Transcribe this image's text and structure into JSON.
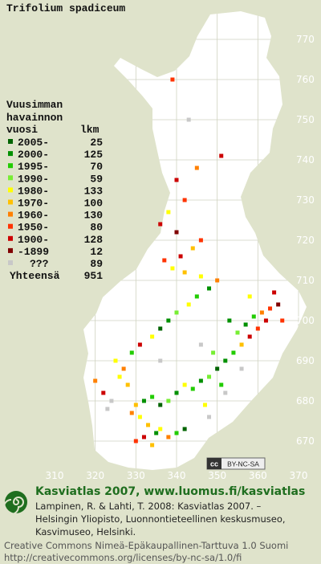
{
  "title": "Trifolium spadiceum",
  "legend": {
    "heading": [
      "Vuusimman",
      "havainnon",
      "vuosi"
    ],
    "count_heading": "lkm",
    "items": [
      {
        "label": "2005-",
        "count": 25,
        "color": "#006400"
      },
      {
        "label": "2000-",
        "count": 125,
        "color": "#009000"
      },
      {
        "label": "1995-",
        "count": 70,
        "color": "#22cc00"
      },
      {
        "label": "1990-",
        "count": 59,
        "color": "#77ee33"
      },
      {
        "label": "1980-",
        "count": 133,
        "color": "#ffff00"
      },
      {
        "label": "1970-",
        "count": 100,
        "color": "#ffc000"
      },
      {
        "label": "1960-",
        "count": 130,
        "color": "#ff8000"
      },
      {
        "label": "1950-",
        "count": 80,
        "color": "#ff3300"
      },
      {
        "label": "1900-",
        "count": 128,
        "color": "#cc0000"
      },
      {
        "label": "-1899",
        "count": 12,
        "color": "#800000"
      },
      {
        "label": "???",
        "count": 89,
        "color": "#c8c8c8"
      }
    ],
    "total": {
      "label": "Yhteensä",
      "count": 951
    }
  },
  "axes": {
    "north": [
      770,
      760,
      750,
      740,
      730,
      720,
      710,
      700,
      690,
      680,
      670
    ],
    "east": [
      310,
      320,
      330,
      340,
      350,
      360,
      370
    ]
  },
  "squares": [
    [
      335,
      672,
      1
    ],
    [
      336,
      673,
      4
    ],
    [
      338,
      671,
      6
    ],
    [
      340,
      672,
      2
    ],
    [
      342,
      673,
      0
    ],
    [
      333,
      674,
      5
    ],
    [
      331,
      676,
      4
    ],
    [
      329,
      677,
      6
    ],
    [
      330,
      679,
      5
    ],
    [
      332,
      680,
      1
    ],
    [
      334,
      681,
      2
    ],
    [
      336,
      679,
      0
    ],
    [
      338,
      680,
      3
    ],
    [
      340,
      682,
      1
    ],
    [
      342,
      684,
      4
    ],
    [
      344,
      683,
      2
    ],
    [
      346,
      685,
      1
    ],
    [
      348,
      686,
      3
    ],
    [
      350,
      688,
      0
    ],
    [
      352,
      690,
      1
    ],
    [
      354,
      692,
      2
    ],
    [
      356,
      694,
      5
    ],
    [
      358,
      696,
      8
    ],
    [
      360,
      698,
      7
    ],
    [
      362,
      700,
      8
    ],
    [
      361,
      702,
      6
    ],
    [
      363,
      703,
      7
    ],
    [
      359,
      701,
      2
    ],
    [
      357,
      699,
      1
    ],
    [
      355,
      697,
      3
    ],
    [
      328,
      684,
      5
    ],
    [
      326,
      686,
      4
    ],
    [
      327,
      688,
      6
    ],
    [
      325,
      690,
      4
    ],
    [
      329,
      692,
      2
    ],
    [
      331,
      694,
      8
    ],
    [
      334,
      696,
      4
    ],
    [
      336,
      698,
      0
    ],
    [
      338,
      700,
      1
    ],
    [
      340,
      702,
      3
    ],
    [
      343,
      704,
      4
    ],
    [
      345,
      706,
      2
    ],
    [
      348,
      708,
      1
    ],
    [
      350,
      710,
      6
    ],
    [
      346,
      711,
      4
    ],
    [
      342,
      712,
      5
    ],
    [
      339,
      713,
      4
    ],
    [
      337,
      715,
      7
    ],
    [
      341,
      716,
      8
    ],
    [
      344,
      718,
      5
    ],
    [
      346,
      720,
      7
    ],
    [
      340,
      722,
      9
    ],
    [
      336,
      724,
      8
    ],
    [
      338,
      727,
      4
    ],
    [
      342,
      730,
      7
    ],
    [
      340,
      735,
      8
    ],
    [
      345,
      738,
      6
    ],
    [
      351,
      741,
      8
    ],
    [
      343,
      750,
      10
    ],
    [
      339,
      760,
      7
    ],
    [
      324,
      680,
      10
    ],
    [
      322,
      682,
      8
    ],
    [
      320,
      685,
      6
    ],
    [
      323,
      678,
      10
    ],
    [
      348,
      676,
      10
    ],
    [
      352,
      682,
      10
    ],
    [
      356,
      688,
      10
    ],
    [
      346,
      694,
      10
    ],
    [
      336,
      690,
      10
    ],
    [
      330,
      670,
      7
    ],
    [
      332,
      671,
      8
    ],
    [
      334,
      669,
      5
    ],
    [
      347,
      679,
      4
    ],
    [
      351,
      684,
      2
    ],
    [
      349,
      692,
      3
    ],
    [
      353,
      700,
      1
    ],
    [
      365,
      704,
      9
    ],
    [
      364,
      707,
      8
    ],
    [
      366,
      700,
      7
    ],
    [
      358,
      706,
      4
    ]
  ],
  "badge": [
    "cc",
    "BY-NC-SA"
  ],
  "footer": {
    "brand": "Kasviatlas 2007, www.luomus.fi/kasviatlas",
    "citation": [
      "Lampinen, R. & Lahti, T. 2008: Kasviatlas 2007. –",
      "Helsingin Yliopisto, Luonnontieteellinen keskusmuseo,",
      "Kasvimuseo, Helsinki."
    ],
    "license": [
      "Creative Commons Nimeä-Epäkaupallinen-Tarttuva 1.0 Suomi",
      "http://creativecommons.org/licenses/by-nc-sa/1.0/fi"
    ]
  }
}
